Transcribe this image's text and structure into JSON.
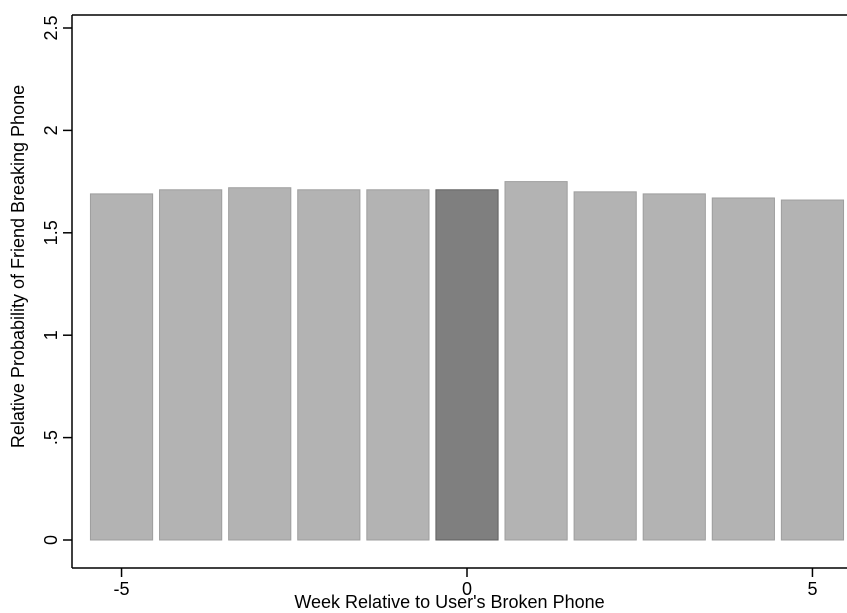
{
  "chart_data": {
    "type": "bar",
    "title": "",
    "xlabel": "Week Relative to User's Broken Phone",
    "ylabel": "Relative Probability of Friend Breaking Phone",
    "x": [
      -5,
      -4,
      -3,
      -2,
      -1,
      0,
      1,
      2,
      3,
      4,
      5
    ],
    "values": [
      1.69,
      1.71,
      1.72,
      1.71,
      1.71,
      1.71,
      1.75,
      1.7,
      1.69,
      1.67,
      1.66
    ],
    "highlight_x": 0,
    "ylim": [
      0,
      2.5
    ],
    "xlim": [
      -5.5,
      5.5
    ],
    "yticks": [
      0,
      0.5,
      1,
      1.5,
      2,
      2.5
    ],
    "ytick_labels": [
      "0",
      ".5",
      "1",
      "1.5",
      "2",
      "2.5"
    ],
    "xticks": [
      -5,
      0,
      5
    ],
    "xtick_labels": [
      "-5",
      "0",
      "5"
    ],
    "grid": false,
    "colors": {
      "bar": "#b3b3b3",
      "bar_edge": "#9e9e9e",
      "highlight": "#7f7f7f",
      "highlight_edge": "#5f5f5f",
      "axis": "#000000"
    }
  }
}
